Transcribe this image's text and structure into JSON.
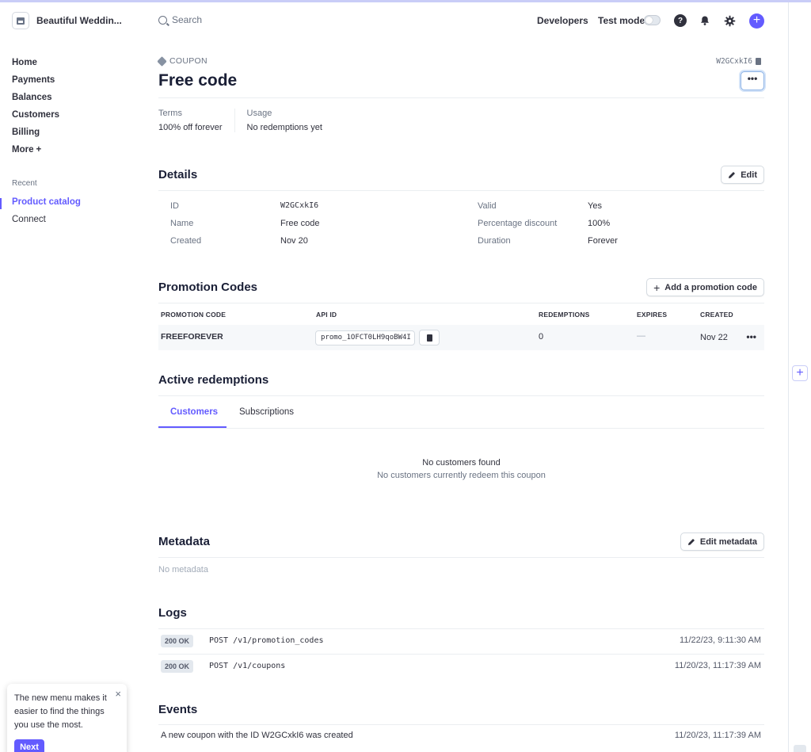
{
  "app": {
    "account_name": "Beautiful Weddin...",
    "search_placeholder": "Search",
    "developers": "Developers",
    "test_mode": "Test mode",
    "test_mode_on": false
  },
  "sidebar": {
    "items": [
      {
        "label": "Home"
      },
      {
        "label": "Payments"
      },
      {
        "label": "Balances"
      },
      {
        "label": "Customers"
      },
      {
        "label": "Billing"
      },
      {
        "label": "More",
        "suffix": "+"
      }
    ],
    "recent_label": "Recent",
    "recent": [
      {
        "label": "Product catalog",
        "active": true
      },
      {
        "label": "Connect",
        "active": false
      }
    ]
  },
  "tip": {
    "text": "The new menu makes it easier to find the things you use the most.",
    "close": "×",
    "next": "Next"
  },
  "page": {
    "type_label": "COUPON",
    "object_id": "W2GCxkI6",
    "title": "Free code",
    "more": "•••",
    "summary": [
      {
        "label": "Terms",
        "value": "100% off forever"
      },
      {
        "label": "Usage",
        "value": "No redemptions yet"
      }
    ]
  },
  "details": {
    "heading": "Details",
    "edit": "Edit",
    "left": [
      {
        "label": "ID",
        "value": "W2GCxkI6"
      },
      {
        "label": "Name",
        "value": "Free code"
      },
      {
        "label": "Created",
        "value": "Nov 20"
      }
    ],
    "right": [
      {
        "label": "Valid",
        "value": "Yes"
      },
      {
        "label": "Percentage discount",
        "value": "100%"
      },
      {
        "label": "Duration",
        "value": "Forever"
      }
    ]
  },
  "promotion_codes": {
    "heading": "Promotion Codes",
    "add": "Add a promotion code",
    "columns": [
      "PROMOTION CODE",
      "API ID",
      "REDEMPTIONS",
      "EXPIRES",
      "CREATED"
    ],
    "rows": [
      {
        "code": "FREEFOREVER",
        "api_id": "promo_1OFCT0LH9qoBW4I",
        "redemptions": "0",
        "expires": "—",
        "created": "Nov 22"
      }
    ],
    "row_more": "•••"
  },
  "redemptions": {
    "heading": "Active redemptions",
    "tabs": [
      "Customers",
      "Subscriptions"
    ],
    "active_tab": 0,
    "empty_title": "No customers found",
    "empty_sub": "No customers currently redeem this coupon"
  },
  "metadata": {
    "heading": "Metadata",
    "edit": "Edit metadata",
    "empty": "No metadata"
  },
  "logs": {
    "heading": "Logs",
    "items": [
      {
        "status": "200 OK",
        "path": "POST /v1/promotion_codes",
        "time": "11/22/23, 9:11:30 AM"
      },
      {
        "status": "200 OK",
        "path": "POST /v1/coupons",
        "time": "11/20/23, 11:17:39 AM"
      }
    ]
  },
  "events": {
    "heading": "Events",
    "items": [
      {
        "text": "A new coupon with the ID W2GCxkI6 was created",
        "time": "11/20/23, 11:17:39 AM"
      }
    ]
  },
  "colors": {
    "accent": "#635bff",
    "text": "#1a1f36",
    "muted": "#6a7383"
  }
}
